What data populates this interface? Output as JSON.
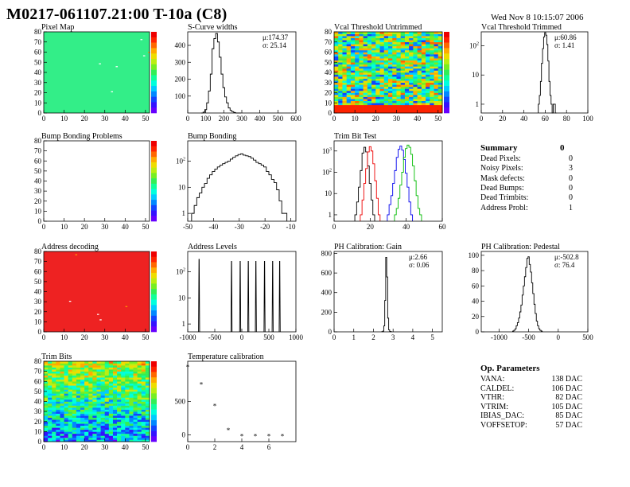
{
  "header": {
    "title": "M0217-061107.21:00 T-10a (C8)",
    "date": "Wed Nov  8 10:15:07 2006"
  },
  "summary": {
    "title": "Summary",
    "total": "0",
    "rows": [
      {
        "label": "Dead Pixels:",
        "value": "0"
      },
      {
        "label": "Noisy Pixels:",
        "value": "3"
      },
      {
        "label": "Mask defects:",
        "value": "0"
      },
      {
        "label": "Dead Bumps:",
        "value": "0"
      },
      {
        "label": "Dead Trimbits:",
        "value": "0"
      },
      {
        "label": "Address Probl:",
        "value": "1"
      }
    ]
  },
  "op_params": {
    "title": "Op. Parameters",
    "rows": [
      {
        "label": "VANA:",
        "value": "138 DAC"
      },
      {
        "label": "CALDEL:",
        "value": "106 DAC"
      },
      {
        "label": "VTHR:",
        "value": "82 DAC"
      },
      {
        "label": "VTRIM:",
        "value": "105 DAC"
      },
      {
        "label": "IBIAS_DAC:",
        "value": "85 DAC"
      },
      {
        "label": "VOFFSETOP:",
        "value": "57 DAC"
      }
    ]
  },
  "chart_data": [
    {
      "id": "pixel_map",
      "type": "heatmap",
      "title": "Pixel Map",
      "xlim": [
        0,
        52
      ],
      "ylim": [
        0,
        80
      ],
      "xticks": [
        0,
        10,
        20,
        30,
        40,
        50
      ],
      "yticks": [
        0,
        10,
        20,
        30,
        40,
        50,
        60,
        70,
        80
      ],
      "dominant_color": "#33ee88",
      "log_z": false
    },
    {
      "id": "scurve",
      "type": "histogram",
      "title": "S-Curve widths",
      "xlim": [
        0,
        600
      ],
      "ylim": [
        0,
        480
      ],
      "xticks": [
        0,
        100,
        200,
        300,
        400,
        500,
        600
      ],
      "yticks": [
        100,
        200,
        300,
        400
      ],
      "log_y": false,
      "stats": [
        "μ:174.37",
        "σ: 25.14"
      ],
      "bins_x": [
        80,
        90,
        100,
        110,
        120,
        130,
        140,
        150,
        160,
        170,
        180,
        190,
        200,
        210,
        220,
        230,
        240,
        250,
        260,
        270,
        280,
        290
      ],
      "counts": [
        0,
        5,
        20,
        60,
        130,
        230,
        380,
        440,
        470,
        420,
        330,
        230,
        150,
        95,
        60,
        30,
        15,
        8,
        3,
        0,
        0,
        0
      ]
    },
    {
      "id": "vcal_untrimmed",
      "type": "heatmap",
      "title": "Vcal Threshold Untrimmed",
      "xlim": [
        0,
        52
      ],
      "ylim": [
        0,
        80
      ],
      "xticks": [
        0,
        10,
        20,
        30,
        40,
        50
      ],
      "yticks": [
        0,
        10,
        20,
        30,
        40,
        50,
        60,
        70,
        80
      ],
      "log_z": false
    },
    {
      "id": "vcal_trimmed",
      "type": "histogram",
      "title": "Vcal Threshold Trimmed",
      "xlim": [
        0,
        100
      ],
      "ylim": [
        0.5,
        300
      ],
      "xticks": [
        0,
        20,
        40,
        60,
        80,
        100
      ],
      "yticks": [
        1,
        10,
        100
      ],
      "log_y": true,
      "stats": [
        "μ:60.86",
        "σ: 1.41"
      ],
      "bins_x": [
        54,
        55,
        56,
        57,
        58,
        59,
        60,
        61,
        62,
        63,
        64,
        65,
        66,
        67,
        68,
        69,
        70
      ],
      "counts": [
        1,
        2,
        6,
        25,
        80,
        200,
        280,
        230,
        110,
        30,
        6,
        2,
        1,
        0,
        1,
        1,
        0
      ]
    },
    {
      "id": "bump_problems",
      "type": "heatmap",
      "title": "Bump Bonding Problems",
      "xlim": [
        0,
        52
      ],
      "ylim": [
        0,
        80
      ],
      "xticks": [
        0,
        10,
        20,
        30,
        40,
        50
      ],
      "yticks": [
        0,
        10,
        20,
        30,
        40,
        50,
        60,
        70,
        80
      ],
      "log_z": false
    },
    {
      "id": "bump_bonding",
      "type": "histogram",
      "title": "Bump Bonding",
      "xlim": [
        -50,
        -8
      ],
      "ylim": [
        0.5,
        600
      ],
      "xticks": [
        -50,
        -40,
        -30,
        -20,
        -10
      ],
      "yticks": [
        1,
        10,
        100
      ],
      "log_y": true,
      "bins_x": [
        -48,
        -47,
        -46,
        -45,
        -44,
        -43,
        -42,
        -41,
        -40,
        -39,
        -38,
        -37,
        -36,
        -35,
        -34,
        -33,
        -32,
        -31,
        -30,
        -29,
        -28,
        -27,
        -26,
        -25,
        -24,
        -23,
        -22,
        -21,
        -20,
        -19,
        -18,
        -17,
        -16,
        -15,
        -14,
        -13,
        -12
      ],
      "counts": [
        1,
        2,
        4,
        6,
        10,
        14,
        22,
        30,
        40,
        50,
        60,
        70,
        80,
        90,
        100,
        120,
        140,
        160,
        180,
        190,
        170,
        160,
        150,
        130,
        110,
        90,
        80,
        70,
        60,
        40,
        30,
        20,
        15,
        8,
        3,
        1,
        1
      ]
    },
    {
      "id": "trim_bit_test",
      "type": "histogram",
      "title": "Trim Bit Test",
      "xlim": [
        0,
        60
      ],
      "ylim": [
        0.5,
        3000
      ],
      "xticks": [
        0,
        20,
        40,
        60
      ],
      "yticks": [
        1,
        10,
        100,
        1000
      ],
      "log_y": true,
      "series": [
        {
          "color": "#000000",
          "bins_x": [
            12,
            13,
            14,
            15,
            16,
            17,
            18,
            19,
            20,
            21,
            22
          ],
          "counts": [
            1,
            4,
            20,
            120,
            800,
            1500,
            900,
            200,
            30,
            5,
            1
          ]
        },
        {
          "color": "#ee0000",
          "bins_x": [
            15,
            16,
            17,
            18,
            19,
            20,
            21,
            22,
            23,
            24,
            25
          ],
          "counts": [
            1,
            5,
            30,
            150,
            900,
            1600,
            1000,
            250,
            40,
            6,
            1
          ]
        },
        {
          "color": "#0000ee",
          "bins_x": [
            30,
            31,
            32,
            33,
            34,
            35,
            36,
            37,
            38,
            39,
            40,
            41,
            42,
            43
          ],
          "counts": [
            1,
            3,
            8,
            30,
            120,
            500,
            1200,
            1700,
            1100,
            400,
            90,
            20,
            4,
            1
          ]
        },
        {
          "color": "#00bb00",
          "bins_x": [
            34,
            35,
            36,
            37,
            38,
            39,
            40,
            41,
            42,
            43,
            44,
            45,
            46,
            47,
            48
          ],
          "counts": [
            1,
            2,
            6,
            25,
            100,
            500,
            1300,
            1900,
            1500,
            700,
            200,
            40,
            8,
            2,
            1
          ]
        }
      ]
    },
    {
      "id": "address_decoding",
      "type": "heatmap",
      "title": "Address decoding",
      "xlim": [
        0,
        52
      ],
      "ylim": [
        0,
        80
      ],
      "xticks": [
        0,
        10,
        20,
        30,
        40,
        50
      ],
      "yticks": [
        0,
        10,
        20,
        30,
        40,
        50,
        60,
        70,
        80
      ],
      "dominant_color": "#ee2222",
      "log_z": false
    },
    {
      "id": "address_levels",
      "type": "histogram",
      "title": "Address Levels",
      "xlim": [
        -1000,
        1000
      ],
      "ylim": [
        0.5,
        600
      ],
      "xticks": [
        -1000,
        -500,
        0,
        500,
        1000
      ],
      "yticks": [
        1,
        10,
        100
      ],
      "log_y": true,
      "peaks": [
        -790,
        -190,
        -30,
        120,
        260,
        420,
        570,
        700
      ],
      "peak_heights": [
        300,
        250,
        250,
        250,
        250,
        250,
        250,
        250
      ]
    },
    {
      "id": "ph_gain",
      "type": "histogram",
      "title": "PH Calibration: Gain",
      "xlim": [
        0,
        5.5
      ],
      "ylim": [
        0,
        820
      ],
      "xticks": [
        0,
        1,
        2,
        3,
        4,
        5
      ],
      "yticks": [
        0,
        200,
        400,
        600,
        800
      ],
      "log_y": false,
      "stats": [
        "μ:2.66",
        "σ: 0.06"
      ],
      "bins_x": [
        2.45,
        2.5,
        2.55,
        2.6,
        2.65,
        2.7,
        2.75,
        2.8,
        2.85,
        2.9
      ],
      "counts": [
        2,
        8,
        60,
        320,
        760,
        560,
        140,
        20,
        4,
        1
      ]
    },
    {
      "id": "ph_pedestal",
      "type": "histogram",
      "title": "PH Calibration: Pedestal",
      "xlim": [
        -1300,
        500
      ],
      "ylim": [
        0,
        105
      ],
      "xticks": [
        -1000,
        -500,
        0,
        500
      ],
      "yticks": [
        0,
        20,
        40,
        60,
        80,
        100
      ],
      "log_y": false,
      "stats": [
        "μ:-502.8",
        "σ: 76.4"
      ],
      "bins_x": [
        -760,
        -740,
        -720,
        -700,
        -680,
        -660,
        -640,
        -620,
        -600,
        -580,
        -560,
        -540,
        -520,
        -500,
        -480,
        -460,
        -440,
        -420,
        -400,
        -380,
        -360,
        -340,
        -320,
        -300,
        -280
      ],
      "counts": [
        1,
        2,
        4,
        8,
        12,
        18,
        26,
        35,
        48,
        60,
        72,
        84,
        96,
        98,
        88,
        78,
        64,
        50,
        36,
        24,
        14,
        8,
        4,
        2,
        1
      ]
    },
    {
      "id": "trim_bits",
      "type": "heatmap",
      "title": "Trim Bits",
      "xlim": [
        0,
        52
      ],
      "ylim": [
        0,
        80
      ],
      "xticks": [
        0,
        10,
        20,
        30,
        40,
        50
      ],
      "yticks": [
        0,
        10,
        20,
        30,
        40,
        50,
        60,
        70,
        80
      ],
      "log_z": false
    },
    {
      "id": "temperature",
      "type": "scatter",
      "title": "Temperature calibration",
      "xlim": [
        0,
        8
      ],
      "ylim": [
        -100,
        1100
      ],
      "xticks": [
        0,
        2,
        4,
        6
      ],
      "yticks": [
        0,
        500
      ],
      "x": [
        0,
        1,
        2,
        3,
        4,
        5,
        6,
        7
      ],
      "y": [
        1020,
        760,
        440,
        80,
        -10,
        -10,
        -10,
        -10
      ]
    }
  ]
}
